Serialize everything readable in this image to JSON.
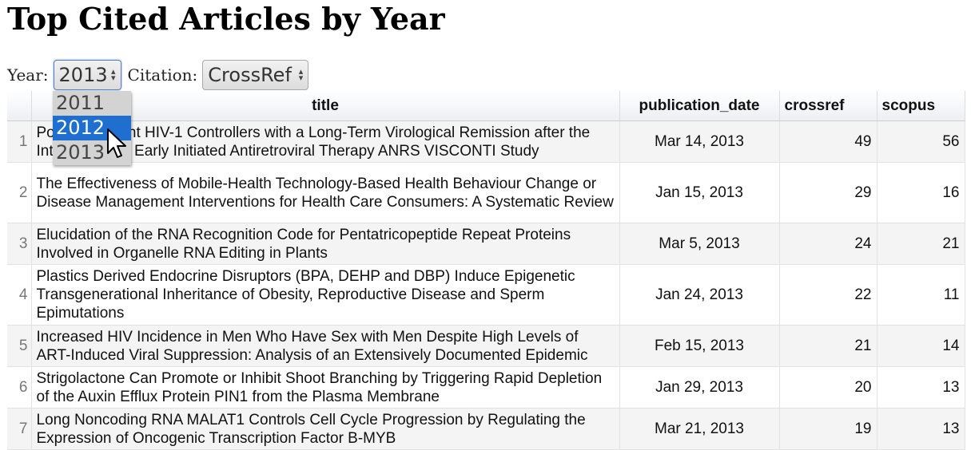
{
  "page": {
    "title": "Top Cited Articles by Year"
  },
  "controls": {
    "year_label": "Year:",
    "year_value": "2013",
    "citation_label": "Citation:",
    "citation_value": "CrossRef"
  },
  "year_dropdown": {
    "options": [
      "2011",
      "2012",
      "2013"
    ],
    "highlighted": "2012"
  },
  "table": {
    "columns": [
      "",
      "title",
      "publication_date",
      "crossref",
      "scopus"
    ],
    "rows": [
      {
        "n": "1",
        "title": "Post-Treatment HIV-1 Controllers with a Long-Term Virological Remission after the Interruption of Early Initiated Antiretroviral Therapy ANRS VISCONTI Study",
        "date": "Mar 14, 2013",
        "crossref": "49",
        "scopus": "56"
      },
      {
        "n": "2",
        "title": "The Effectiveness of Mobile-Health Technology-Based Health Behaviour Change or Disease Management Interventions for Health Care Consumers: A Systematic Review",
        "date": "Jan 15, 2013",
        "crossref": "29",
        "scopus": "16"
      },
      {
        "n": "3",
        "title": "Elucidation of the RNA Recognition Code for Pentatricopeptide Repeat Proteins Involved in Organelle RNA Editing in Plants",
        "date": "Mar 5, 2013",
        "crossref": "24",
        "scopus": "21"
      },
      {
        "n": "4",
        "title": "Plastics Derived Endocrine Disruptors (BPA, DEHP and DBP) Induce Epigenetic Transgenerational Inheritance of Obesity, Reproductive Disease and Sperm Epimutations",
        "date": "Jan 24, 2013",
        "crossref": "22",
        "scopus": "11"
      },
      {
        "n": "5",
        "title": "Increased HIV Incidence in Men Who Have Sex with Men Despite High Levels of ART-Induced Viral Suppression: Analysis of an Extensively Documented Epidemic",
        "date": "Feb 15, 2013",
        "crossref": "21",
        "scopus": "14"
      },
      {
        "n": "6",
        "title": "Strigolactone Can Promote or Inhibit Shoot Branching by Triggering Rapid Depletion of the Auxin Efflux Protein PIN1 from the Plasma Membrane",
        "date": "Jan 29, 2013",
        "crossref": "20",
        "scopus": "13"
      },
      {
        "n": "7",
        "title": "Long Noncoding RNA MALAT1 Controls Cell Cycle Progression by Regulating the Expression of Oncogenic Transcription Factor B-MYB",
        "date": "Mar 21, 2013",
        "crossref": "19",
        "scopus": "13"
      }
    ]
  },
  "icons": {
    "cursor": "mouse-pointer-icon",
    "select_arrows": "updown-arrows-icon"
  },
  "colors": {
    "highlight": "#1f6fd0",
    "row_alt": "#f4f4f4"
  }
}
